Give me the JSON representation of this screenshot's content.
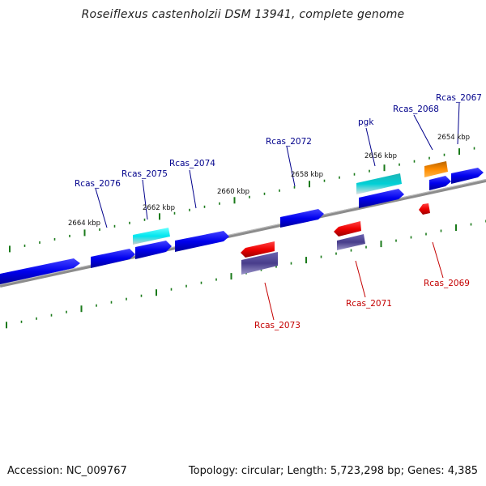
{
  "title": "Roseiflexus castenholzii DSM 13941, complete genome",
  "footer": {
    "accession": "Accession: NC_009767",
    "topology": "Topology: circular; Length: 5,723,298 bp; Genes: 4,385"
  },
  "colors": {
    "backbone": "#808080",
    "tick": "#1a7a1a",
    "label_forward": "#00008b",
    "label_reverse": "#c40000",
    "cds": "#0000ee",
    "trna": "#00e5ee",
    "rrna": "#00c5cd",
    "reverse_cds": "#ee0000",
    "misc": "#483d8b",
    "other": "#ff8c00"
  },
  "scale_labels": [
    "2654 kbp",
    "2656 kbp",
    "2658 kbp",
    "2660 kbp",
    "2662 kbp",
    "2664 kbp"
  ],
  "gene_labels": {
    "forward": [
      "Rcas_2067",
      "Rcas_2068",
      "pgk",
      "Rcas_2072",
      "Rcas_2074",
      "Rcas_2075",
      "Rcas_2076"
    ],
    "reverse": [
      "Rcas_2069",
      "Rcas_2071",
      "Rcas_2073"
    ]
  }
}
